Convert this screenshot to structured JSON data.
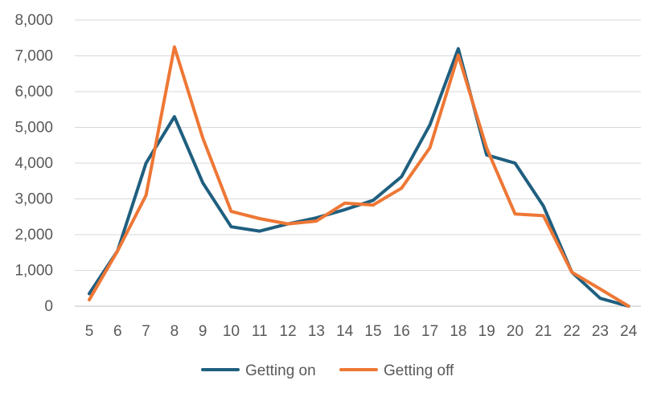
{
  "chart_data": {
    "type": "line",
    "title": "",
    "xlabel": "",
    "ylabel": "",
    "x": [
      5,
      6,
      7,
      8,
      9,
      10,
      11,
      12,
      13,
      14,
      15,
      16,
      17,
      18,
      19,
      20,
      21,
      22,
      23,
      24
    ],
    "x_tick_labels": [
      "5",
      "6",
      "7",
      "8",
      "9",
      "10",
      "11",
      "12",
      "13",
      "14",
      "15",
      "16",
      "17",
      "18",
      "19",
      "20",
      "21",
      "22",
      "23",
      "24"
    ],
    "ylim": [
      0,
      8000
    ],
    "y_ticks": [
      0,
      1000,
      2000,
      3000,
      4000,
      5000,
      6000,
      7000,
      8000
    ],
    "y_tick_labels": [
      "0",
      "1,000",
      "2,000",
      "3,000",
      "4,000",
      "5,000",
      "6,000",
      "7,000",
      "8,000"
    ],
    "grid": true,
    "legend_position": "bottom",
    "series": [
      {
        "name": "Getting on",
        "color": "#1f5f7f",
        "values": [
          350,
          1550,
          4000,
          5300,
          3450,
          2220,
          2100,
          2300,
          2470,
          2700,
          2960,
          3620,
          5070,
          7200,
          4230,
          4000,
          2800,
          950,
          220,
          0
        ]
      },
      {
        "name": "Getting off",
        "color": "#ee7735",
        "values": [
          180,
          1550,
          3100,
          7250,
          4700,
          2650,
          2450,
          2300,
          2380,
          2880,
          2830,
          3300,
          4430,
          7020,
          4420,
          2580,
          2530,
          950,
          480,
          0
        ]
      }
    ]
  }
}
